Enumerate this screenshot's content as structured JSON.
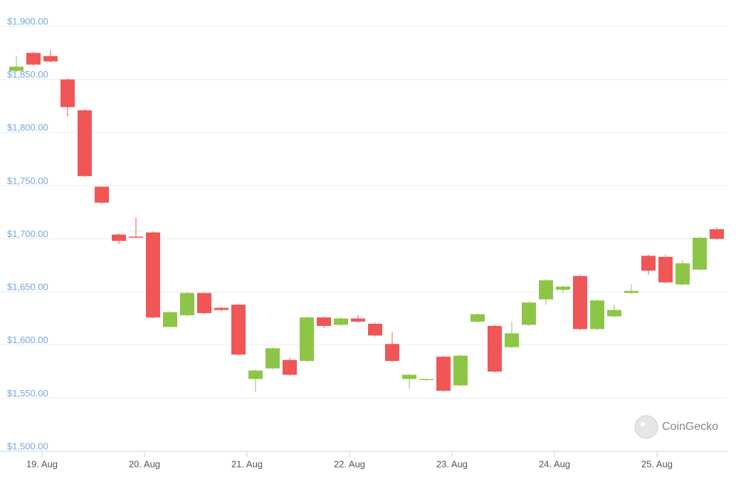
{
  "chart_data": {
    "type": "candlestick",
    "watermark": "CoinGecko",
    "x": [
      -6,
      -2,
      2,
      6,
      10,
      14,
      18,
      22,
      26,
      30,
      34,
      38,
      42,
      46,
      50,
      54,
      58,
      62,
      66,
      70,
      74,
      78,
      82,
      86,
      90,
      94,
      98,
      102,
      106,
      110,
      114,
      118,
      122,
      126,
      130,
      134,
      138,
      142,
      146,
      150,
      154,
      158
    ],
    "open": [
      1858,
      1875,
      1872,
      1850,
      1821,
      1749,
      1704,
      1702,
      1706,
      1617,
      1628,
      1649,
      1635,
      1638,
      1568,
      1578,
      1586,
      1585,
      1626,
      1619,
      1625,
      1620,
      1601,
      1568,
      1567,
      1589,
      1562,
      1622,
      1618,
      1598,
      1619,
      1643,
      1652,
      1665,
      1615,
      1627,
      1649,
      1684,
      1683,
      1657,
      1671,
      1709
    ],
    "high": [
      1872,
      1876,
      1878,
      1851,
      1822,
      1749,
      1705,
      1720,
      1707,
      1632,
      1650,
      1650,
      1636,
      1639,
      1577,
      1598,
      1588,
      1627,
      1627,
      1626,
      1628,
      1621,
      1612,
      1573,
      1568,
      1590,
      1591,
      1630,
      1619,
      1622,
      1641,
      1662,
      1656,
      1666,
      1643,
      1638,
      1657,
      1685,
      1685,
      1680,
      1702,
      1711
    ],
    "low": [
      1857,
      1863,
      1866,
      1815,
      1758,
      1733,
      1695,
      1701,
      1625,
      1617,
      1627,
      1629,
      1632,
      1590,
      1556,
      1577,
      1571,
      1584,
      1616,
      1618,
      1621,
      1608,
      1584,
      1559,
      1566,
      1556,
      1561,
      1621,
      1574,
      1597,
      1618,
      1638,
      1649,
      1614,
      1614,
      1626,
      1648,
      1666,
      1658,
      1656,
      1670,
      1699
    ],
    "close": [
      1862,
      1864,
      1867,
      1824,
      1759,
      1734,
      1698,
      1701,
      1626,
      1631,
      1649,
      1630,
      1633,
      1591,
      1576,
      1597,
      1572,
      1626,
      1618,
      1625,
      1622,
      1609,
      1585,
      1572,
      1568,
      1557,
      1590,
      1629,
      1575,
      1611,
      1640,
      1661,
      1655,
      1615,
      1642,
      1633,
      1651,
      1670,
      1659,
      1677,
      1701,
      1700
    ],
    "up_color": "#8dc647",
    "down_color": "#f05656",
    "xlim": [
      -8,
      160
    ],
    "xticks": [
      {
        "value": 0,
        "label": "19. Aug"
      },
      {
        "value": 24,
        "label": "20. Aug"
      },
      {
        "value": 48,
        "label": "21. Aug"
      },
      {
        "value": 72,
        "label": "22. Aug"
      },
      {
        "value": 96,
        "label": "23. Aug"
      },
      {
        "value": 120,
        "label": "24. Aug"
      },
      {
        "value": 144,
        "label": "25. Aug"
      }
    ],
    "ylim": [
      1500,
      1900
    ],
    "yticks": [
      {
        "value": 1500,
        "label": "$1,500.00"
      },
      {
        "value": 1550,
        "label": "$1,550.00"
      },
      {
        "value": 1600,
        "label": "$1,600.00"
      },
      {
        "value": 1650,
        "label": "$1,650.00"
      },
      {
        "value": 1700,
        "label": "$1,700.00"
      },
      {
        "value": 1750,
        "label": "$1,750.00"
      },
      {
        "value": 1800,
        "label": "$1,800.00"
      },
      {
        "value": 1850,
        "label": "$1,850.00"
      },
      {
        "value": 1900,
        "label": "$1,900.00"
      }
    ],
    "grid": true
  }
}
